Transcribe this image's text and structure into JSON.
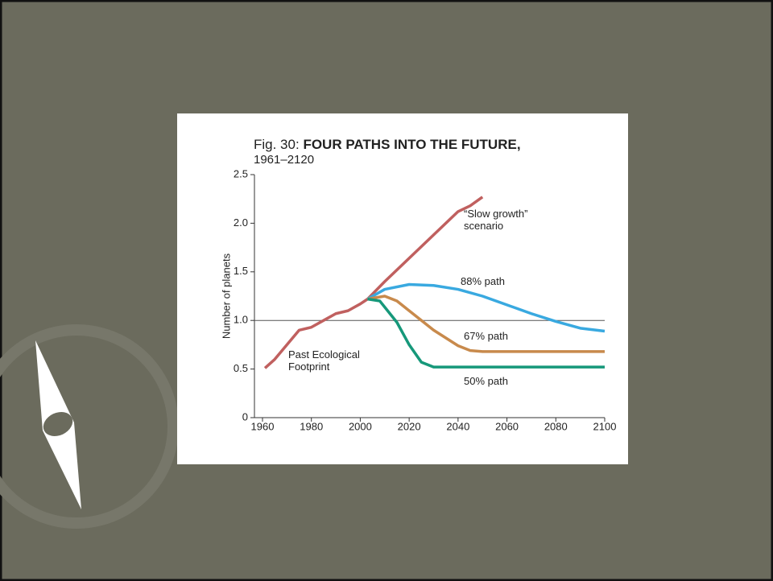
{
  "chart_data": {
    "type": "line",
    "figure_label": "Fig. 30:",
    "title": "FOUR PATHS INTO THE FUTURE,",
    "subtitle": "1961–2120",
    "y_label": "Number of planets",
    "xlim": [
      1960,
      2100
    ],
    "xticks": [
      1960,
      1980,
      2000,
      2020,
      2040,
      2060,
      2080,
      2100
    ],
    "ylim": [
      0,
      2.5
    ],
    "yticks": [
      0,
      0.5,
      {
        "value": 1,
        "label": "1.0"
      },
      1.5,
      {
        "value": 2,
        "label": "2.0"
      },
      2.5
    ],
    "reference_line": 1,
    "series": [
      {
        "name": "Past Ecological Footprint",
        "color": "#c0605f",
        "x": [
          1961,
          1965,
          1970,
          1975,
          1980,
          1985,
          1990,
          1995,
          2000,
          2003
        ],
        "values": [
          0.51,
          0.6,
          0.75,
          0.9,
          0.93,
          1.0,
          1.07,
          1.1,
          1.17,
          1.22
        ]
      },
      {
        "name": "“Slow growth” scenario",
        "color": "#c0605f",
        "x": [
          2003,
          2010,
          2020,
          2030,
          2040,
          2045,
          2050
        ],
        "values": [
          1.22,
          1.4,
          1.64,
          1.88,
          2.12,
          2.18,
          2.27
        ]
      },
      {
        "name": "88% path",
        "color": "#39a9e0",
        "x": [
          2003,
          2010,
          2020,
          2030,
          2040,
          2050,
          2060,
          2070,
          2080,
          2090,
          2100
        ],
        "values": [
          1.22,
          1.32,
          1.37,
          1.36,
          1.32,
          1.25,
          1.16,
          1.07,
          0.99,
          0.92,
          0.89
        ]
      },
      {
        "name": "67% path",
        "color": "#c88a4c",
        "x": [
          2003,
          2010,
          2015,
          2020,
          2030,
          2040,
          2045,
          2050,
          2100
        ],
        "values": [
          1.22,
          1.25,
          1.2,
          1.1,
          0.9,
          0.74,
          0.69,
          0.68,
          0.68
        ]
      },
      {
        "name": "50% path",
        "color": "#16987a",
        "x": [
          2003,
          2008,
          2015,
          2020,
          2025,
          2030,
          2100
        ],
        "values": [
          1.22,
          1.2,
          0.98,
          0.75,
          0.57,
          0.52,
          0.52
        ]
      }
    ]
  }
}
